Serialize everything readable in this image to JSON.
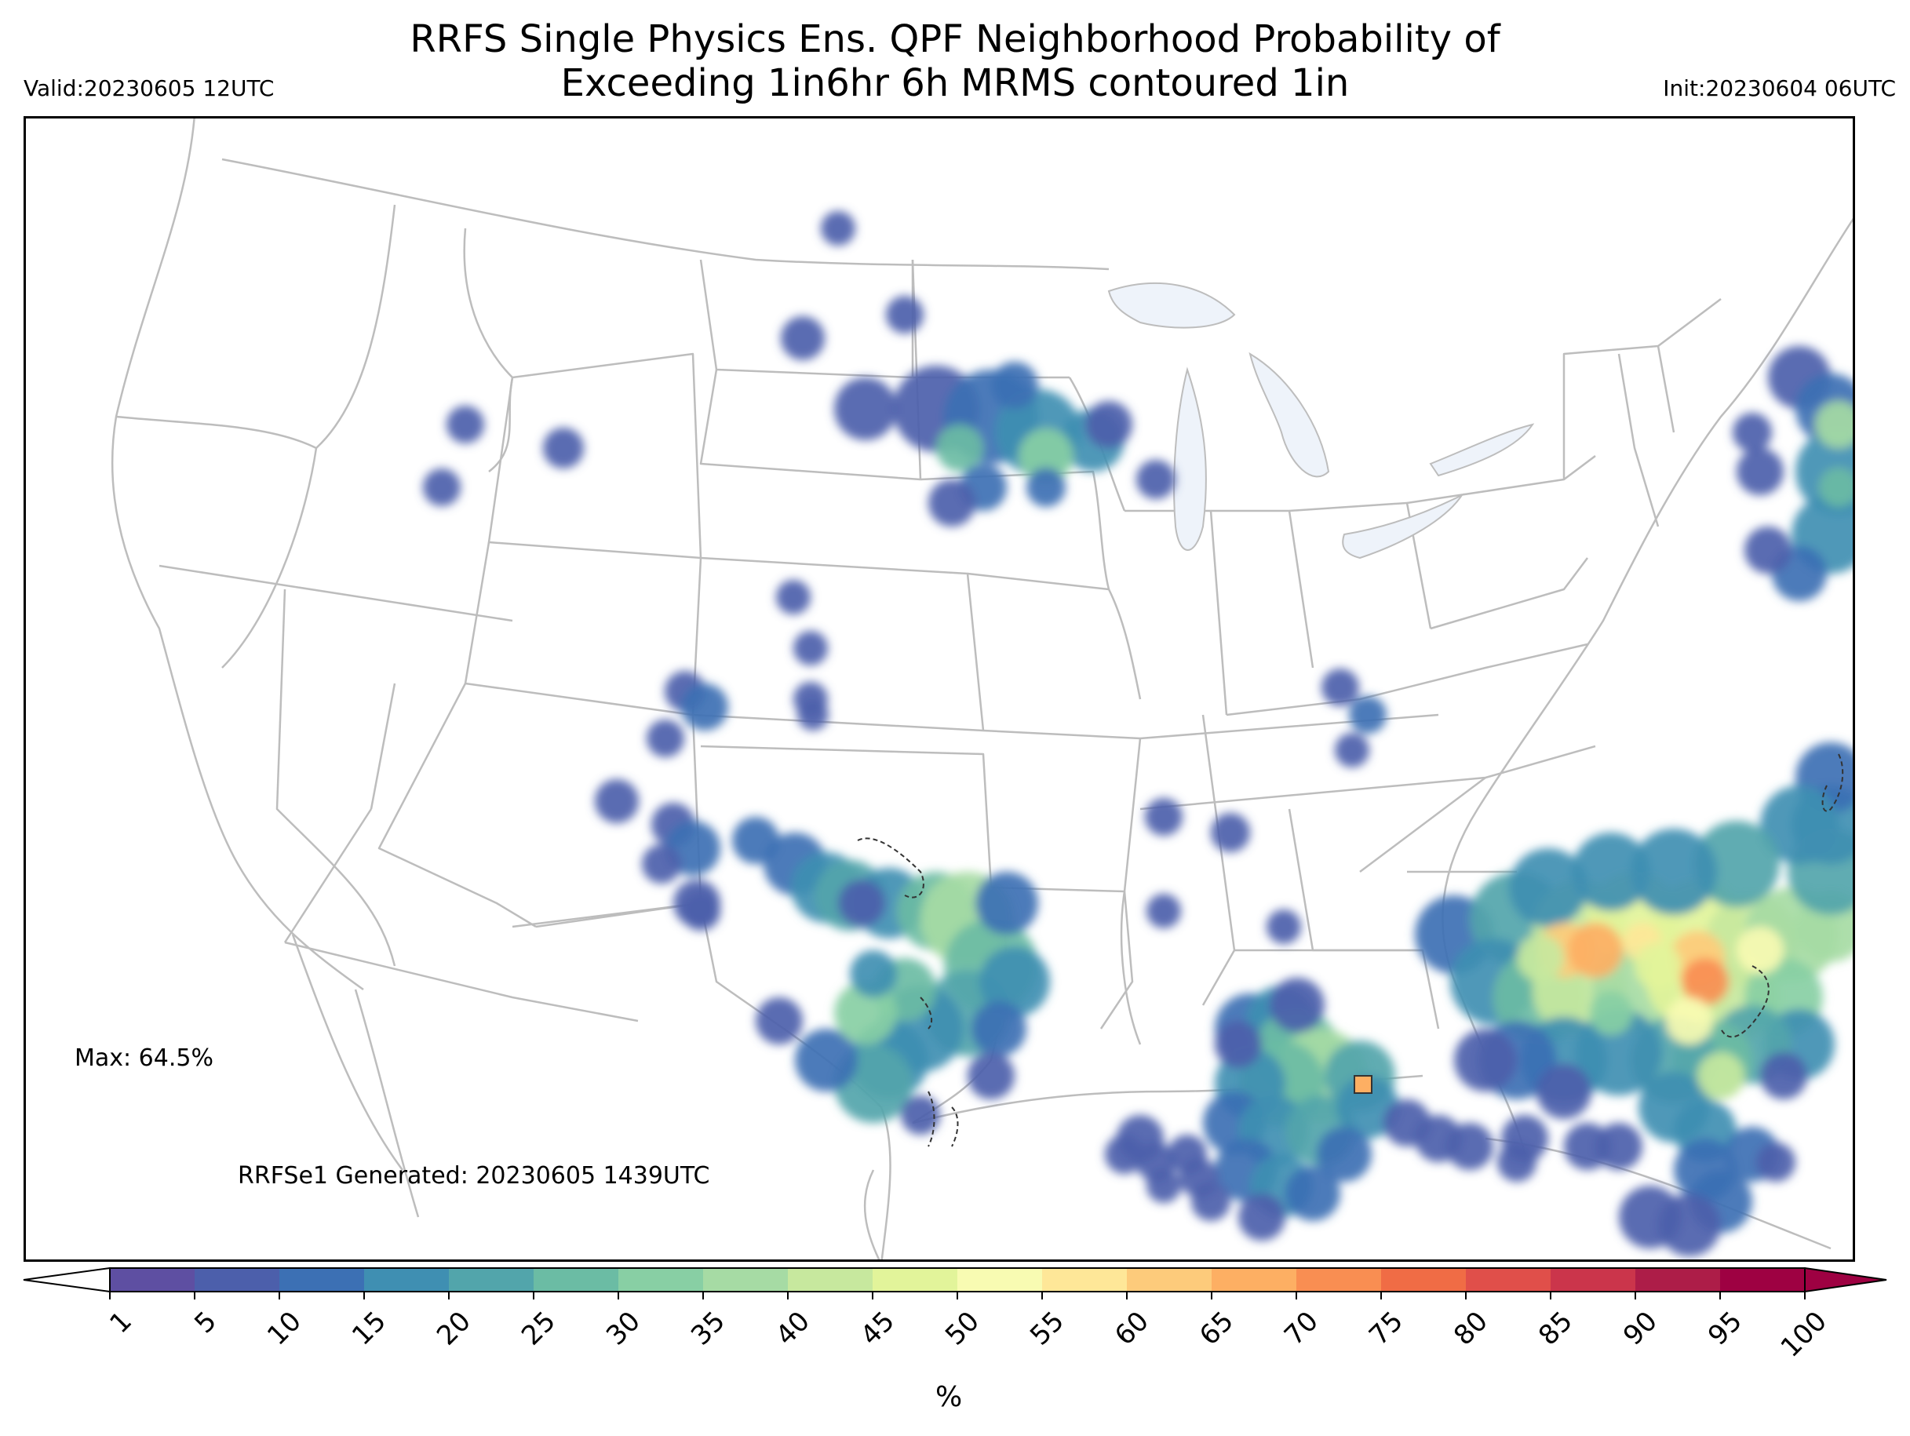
{
  "title_line1": "RRFS Single Physics Ens. QPF Neighborhood Probability of",
  "title_line2": "Exceeding 1in6hr 6h MRMS contoured 1in",
  "valid": "Valid:20230605 12UTC",
  "init": "Init:20230604 06UTC",
  "max_label": "Max: 64.5%",
  "generated": "RRFSe1 Generated: 20230605 1439UTC",
  "colorbar": {
    "levels": [
      "1",
      "5",
      "10",
      "15",
      "20",
      "25",
      "30",
      "35",
      "40",
      "45",
      "50",
      "55",
      "60",
      "65",
      "70",
      "75",
      "80",
      "85",
      "90",
      "95",
      "100"
    ],
    "colors": [
      "#5e4fa2",
      "#4c5fab",
      "#3c70b4",
      "#3f8fb2",
      "#52a5ab",
      "#6bbca4",
      "#88cfa4",
      "#a6dba4",
      "#c7e89e",
      "#e2f49a",
      "#f8fbb2",
      "#fee798",
      "#fdcb7b",
      "#fdaf63",
      "#f98e52",
      "#f06c45",
      "#e04f4a",
      "#cb354b",
      "#ad1d48",
      "#9e0142"
    ],
    "unit": "%"
  },
  "map_style": {
    "boundary_color": "#bdbdbd",
    "lake_color": "#eef3fa",
    "contour_color": "#333333"
  }
}
